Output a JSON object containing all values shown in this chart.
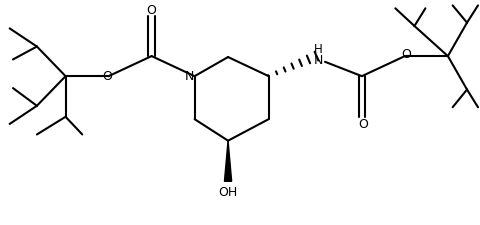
{
  "background_color": "#ffffff",
  "line_color": "#000000",
  "line_width": 1.5,
  "font_size": 9,
  "figsize": [
    4.8,
    2.26
  ],
  "dpi": 100,
  "xlim": [
    0,
    10
  ],
  "ylim": [
    0,
    4.7
  ]
}
